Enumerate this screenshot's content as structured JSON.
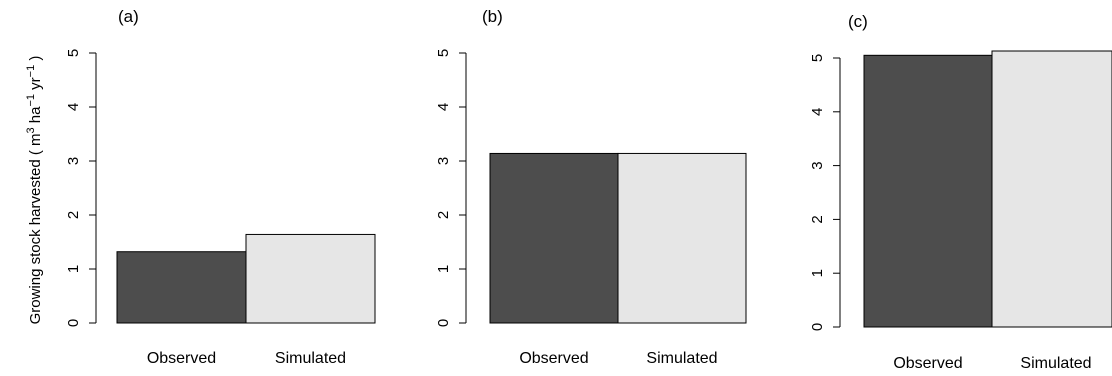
{
  "ylabel": {
    "prefix": "Growing stock harvested ( m",
    "sup1": "3",
    "mid": " ha",
    "sup2": "−1",
    "mid2": " yr",
    "sup3": "−1",
    "suffix": " )"
  },
  "colors": {
    "observed": "#4d4d4d",
    "simulated": "#e6e6e6",
    "stroke": "#000000"
  },
  "chart_data": [
    {
      "type": "bar",
      "panel_label": "(a)",
      "categories": [
        "Observed",
        "Simulated"
      ],
      "values": [
        1.32,
        1.64
      ],
      "ylim": [
        0,
        5
      ],
      "yticks": [
        "0",
        "1",
        "2",
        "3",
        "4",
        "5"
      ]
    },
    {
      "type": "bar",
      "panel_label": "(b)",
      "categories": [
        "Observed",
        "Simulated"
      ],
      "values": [
        3.14,
        3.14
      ],
      "ylim": [
        0,
        5
      ],
      "yticks": [
        "0",
        "1",
        "2",
        "3",
        "4",
        "5"
      ]
    },
    {
      "type": "bar",
      "panel_label": "(c)",
      "categories": [
        "Observed",
        "Simulated"
      ],
      "values": [
        5.05,
        5.13
      ],
      "ylim": [
        0,
        5
      ],
      "yticks": [
        "0",
        "1",
        "2",
        "3",
        "4",
        "5"
      ]
    }
  ]
}
